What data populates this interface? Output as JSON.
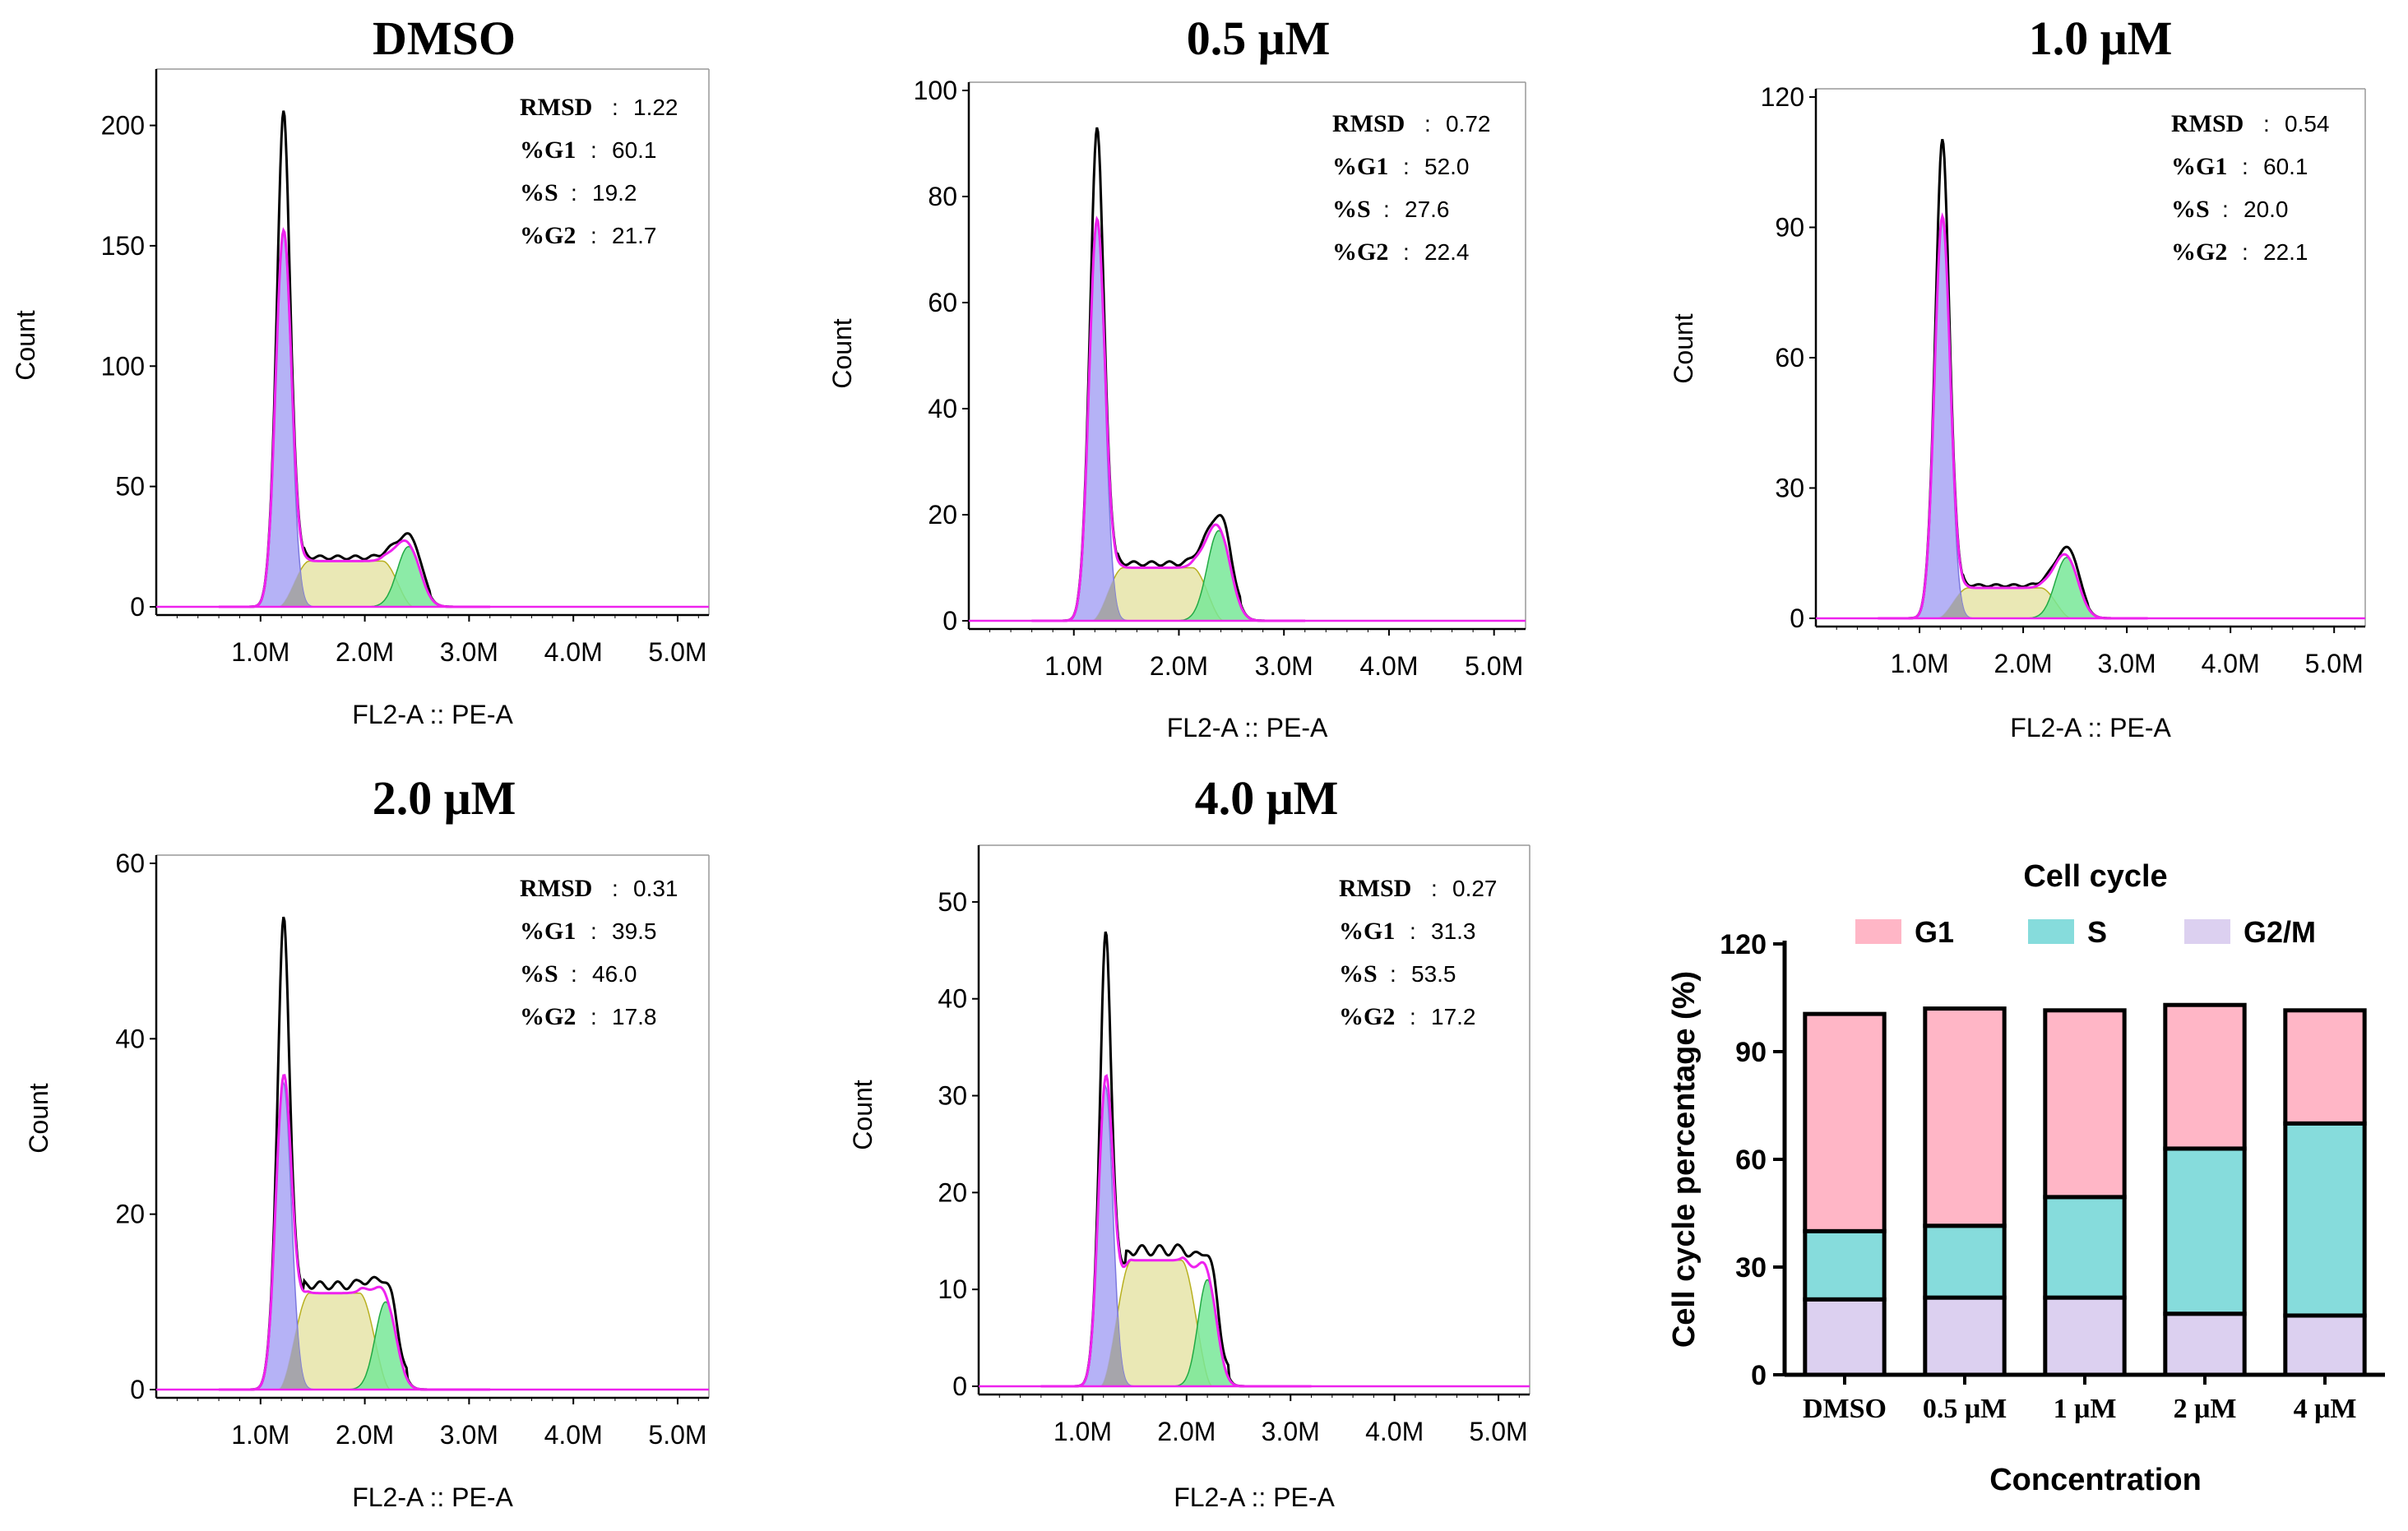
{
  "chart_data": [
    {
      "type": "area",
      "title": "DMSO",
      "xlabel": "FL2-A :: PE-A",
      "ylabel": "Count",
      "x_tick_labels": [
        "1.0M",
        "2.0M",
        "3.0M",
        "4.0M",
        "5.0M"
      ],
      "x_ticks": [
        1.0,
        2.0,
        3.0,
        4.0,
        5.0
      ],
      "xlim": [
        0,
        5.3
      ],
      "ylim": [
        0,
        220
      ],
      "y_ticks": [
        0,
        50,
        100,
        150,
        200
      ],
      "stats": [
        {
          "key": "RMSD",
          "sep": " : ",
          "value": "1.22"
        },
        {
          "key": "%G1",
          "sep": " : ",
          "value": "60.1"
        },
        {
          "key": "%S",
          "sep": " : ",
          "value": "19.2"
        },
        {
          "key": "%G2",
          "sep": " : ",
          "value": "21.7"
        }
      ],
      "fit": {
        "g1_mean": 1.22,
        "g1_height": 155,
        "g1_sd": 0.075,
        "s_height": 19,
        "g2_mean": 2.42,
        "g2_height": 25,
        "g2_sd": 0.11
      },
      "raw_peak": 200
    },
    {
      "type": "area",
      "title": "0.5 μM",
      "xlabel": "FL2-A :: PE-A",
      "ylabel": "Count",
      "x_tick_labels": [
        "1.0M",
        "2.0M",
        "3.0M",
        "4.0M",
        "5.0M"
      ],
      "x_ticks": [
        1.0,
        2.0,
        3.0,
        4.0,
        5.0
      ],
      "xlim": [
        0,
        5.3
      ],
      "ylim": [
        0,
        100
      ],
      "y_ticks": [
        0,
        20,
        40,
        60,
        80,
        100
      ],
      "stats": [
        {
          "key": "RMSD",
          "sep": " : ",
          "value": "0.72"
        },
        {
          "key": "%G1",
          "sep": " : ",
          "value": "52.0"
        },
        {
          "key": "%S",
          "sep": " : ",
          "value": "27.6"
        },
        {
          "key": "%G2",
          "sep": " : ",
          "value": "22.4"
        }
      ],
      "fit": {
        "g1_mean": 1.22,
        "g1_height": 75,
        "g1_sd": 0.075,
        "s_height": 10,
        "g2_mean": 2.38,
        "g2_height": 17,
        "g2_sd": 0.11
      },
      "raw_peak": 90
    },
    {
      "type": "area",
      "title": "1.0 μM",
      "xlabel": "FL2-A :: PE-A",
      "ylabel": "Count",
      "x_tick_labels": [
        "1.0M",
        "2.0M",
        "3.0M",
        "4.0M",
        "5.0M"
      ],
      "x_ticks": [
        1.0,
        2.0,
        3.0,
        4.0,
        5.0
      ],
      "xlim": [
        0,
        5.3
      ],
      "ylim": [
        0,
        120
      ],
      "y_ticks": [
        0,
        30,
        60,
        90,
        120
      ],
      "stats": [
        {
          "key": "RMSD",
          "sep": " : ",
          "value": "0.54"
        },
        {
          "key": "%G1",
          "sep": " : ",
          "value": "60.1"
        },
        {
          "key": "%S",
          "sep": " : ",
          "value": "20.0"
        },
        {
          "key": "%G2",
          "sep": " : ",
          "value": "22.1"
        }
      ],
      "fit": {
        "g1_mean": 1.22,
        "g1_height": 92,
        "g1_sd": 0.075,
        "s_height": 7,
        "g2_mean": 2.42,
        "g2_height": 14,
        "g2_sd": 0.11
      },
      "raw_peak": 107
    },
    {
      "type": "area",
      "title": "2.0 μM",
      "xlabel": "FL2-A :: PE-A",
      "ylabel": "Count",
      "x_tick_labels": [
        "1.0M",
        "2.0M",
        "3.0M",
        "4.0M",
        "5.0M"
      ],
      "x_ticks": [
        1.0,
        2.0,
        3.0,
        4.0,
        5.0
      ],
      "xlim": [
        0,
        5.3
      ],
      "ylim": [
        0,
        60
      ],
      "y_ticks": [
        0,
        20,
        40,
        60
      ],
      "stats": [
        {
          "key": "RMSD",
          "sep": " : ",
          "value": "0.31"
        },
        {
          "key": "%G1",
          "sep": " : ",
          "value": "39.5"
        },
        {
          "key": "%S",
          "sep": " : ",
          "value": "46.0"
        },
        {
          "key": "%G2",
          "sep": " : ",
          "value": "17.8"
        }
      ],
      "fit": {
        "g1_mean": 1.22,
        "g1_height": 35,
        "g1_sd": 0.075,
        "s_height": 11,
        "g2_mean": 2.2,
        "g2_height": 10,
        "g2_sd": 0.1
      },
      "raw_peak": 52
    },
    {
      "type": "area",
      "title": "4.0 μM",
      "xlabel": "FL2-A :: PE-A",
      "ylabel": "Count",
      "x_tick_labels": [
        "1.0M",
        "2.0M",
        "3.0M",
        "4.0M",
        "5.0M"
      ],
      "x_ticks": [
        1.0,
        2.0,
        3.0,
        4.0,
        5.0
      ],
      "xlim": [
        0,
        5.3
      ],
      "ylim": [
        0,
        55
      ],
      "y_ticks": [
        0,
        10,
        20,
        30,
        40,
        50
      ],
      "stats": [
        {
          "key": "RMSD",
          "sep": " : ",
          "value": "0.27"
        },
        {
          "key": "%G1",
          "sep": " : ",
          "value": "31.3"
        },
        {
          "key": "%S",
          "sep": " : ",
          "value": "53.5"
        },
        {
          "key": "%G2",
          "sep": " : ",
          "value": "17.2"
        }
      ],
      "fit": {
        "g1_mean": 1.22,
        "g1_height": 31,
        "g1_sd": 0.07,
        "s_height": 13,
        "g2_mean": 2.2,
        "g2_height": 11,
        "g2_sd": 0.09
      },
      "raw_peak": 45
    },
    {
      "type": "bar",
      "stacked": true,
      "title": "Cell cycle",
      "xlabel": "Concentration",
      "ylabel": "Cell cycle percentage (%)",
      "categories": [
        "DMSO",
        "0.5 μM",
        "1 μM",
        "2 μM",
        "4 μM"
      ],
      "ylim": [
        0,
        120
      ],
      "y_ticks": [
        0,
        30,
        60,
        90,
        120
      ],
      "series": [
        {
          "name": "G2/M",
          "values": [
            21,
            21.5,
            21.5,
            17,
            16.5
          ],
          "color": "#dcd0f0"
        },
        {
          "name": "S",
          "values": [
            19,
            20,
            28,
            46,
            53.5
          ],
          "color": "#86dcdc"
        },
        {
          "name": "G1",
          "values": [
            60.5,
            60.5,
            52,
            40,
            31.5
          ],
          "color": "#ffb6c6"
        }
      ],
      "legend_order": [
        "G1",
        "S",
        "G2/M"
      ],
      "legend_position": "top"
    }
  ],
  "colors": {
    "g1_fill": "#a8a4f4",
    "s_fill": "#e6e4a8",
    "g2_fill": "#78e898",
    "overlap_fill": "#a4a4a4",
    "fit_line": "#ee22ee",
    "raw_line": "#000000"
  }
}
